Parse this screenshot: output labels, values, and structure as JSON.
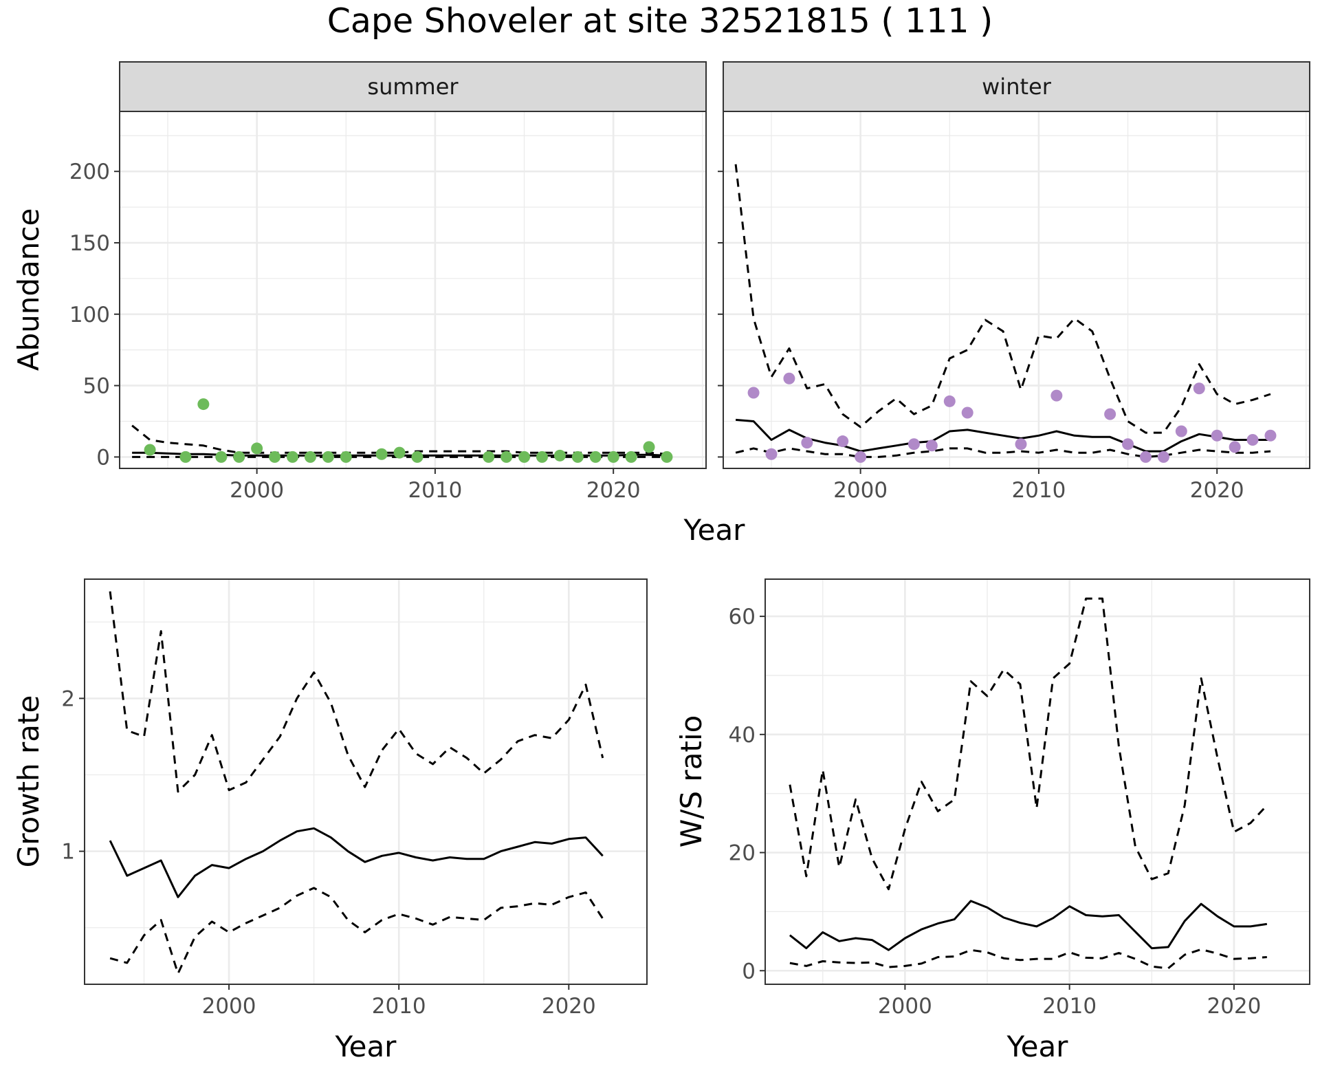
{
  "figure": {
    "title": "Cape Shoveler at site 32521815 ( 111 )"
  },
  "colors": {
    "summer_points": "#6dbb5a",
    "winter_points": "#b089c8",
    "lines": "#000000",
    "strip_fill": "#d9d9d9",
    "grid": "#ebebeb",
    "axis_text": "#4d4d4d"
  },
  "chart_data": [
    {
      "type": "scatter",
      "panel": "summer",
      "strip_label": "summer",
      "ylabel": "Abundance",
      "xlabel": "Year",
      "xlim": [
        1992.3,
        2025.2
      ],
      "ylim": [
        -8,
        242
      ],
      "xticks": [
        2000,
        2010,
        2020
      ],
      "yticks": [
        0,
        50,
        100,
        150,
        200
      ],
      "grid": true,
      "points": {
        "x": [
          1994,
          1996,
          1997,
          1998,
          1999,
          2000,
          2001,
          2002,
          2003,
          2004,
          2005,
          2007,
          2008,
          2009,
          2013,
          2014,
          2015,
          2016,
          2017,
          2018,
          2019,
          2020,
          2021,
          2022,
          2023
        ],
        "y": [
          5,
          0,
          37,
          0,
          0,
          6,
          0,
          0,
          0,
          0,
          0,
          2,
          3,
          0,
          0,
          0,
          0,
          0,
          1,
          0,
          0,
          0,
          0,
          7,
          0
        ]
      },
      "series": [
        {
          "style": "solid",
          "x": [
            1993,
            1994,
            1995,
            1996,
            1997,
            1998,
            1999,
            2000,
            2001,
            2002,
            2003,
            2004,
            2005,
            2006,
            2007,
            2008,
            2009,
            2010,
            2011,
            2012,
            2013,
            2014,
            2015,
            2016,
            2017,
            2018,
            2019,
            2020,
            2021,
            2022,
            2023
          ],
          "y": [
            3,
            3,
            2.5,
            2,
            2,
            1.5,
            1,
            1,
            1,
            1,
            1,
            1,
            1,
            1,
            1,
            1,
            1,
            1,
            1,
            1,
            1,
            1,
            1,
            1,
            1,
            1,
            1,
            1,
            1.5,
            1.5,
            1
          ]
        },
        {
          "style": "dashed",
          "x": [
            1993,
            1994,
            1995,
            1996,
            1997,
            1998,
            1999,
            2000,
            2001,
            2002,
            2003,
            2004,
            2005,
            2006,
            2007,
            2008,
            2009,
            2010,
            2011,
            2012,
            2013,
            2014,
            2015,
            2016,
            2017,
            2018,
            2019,
            2020,
            2021,
            2022,
            2023
          ],
          "y": [
            22,
            12,
            10,
            9,
            8,
            5,
            3,
            3,
            3,
            3,
            3,
            3,
            3,
            3,
            3,
            3,
            4,
            4,
            4,
            4,
            4,
            4,
            3,
            3,
            3,
            3,
            3,
            3,
            3,
            3,
            2
          ]
        },
        {
          "style": "dashed",
          "x": [
            1993,
            1994,
            1995,
            1996,
            1997,
            1998,
            1999,
            2000,
            2001,
            2002,
            2003,
            2004,
            2005,
            2006,
            2007,
            2008,
            2009,
            2010,
            2011,
            2012,
            2013,
            2014,
            2015,
            2016,
            2017,
            2018,
            2019,
            2020,
            2021,
            2022,
            2023
          ],
          "y": [
            0,
            0,
            0,
            0,
            0,
            0,
            0,
            0,
            0,
            0,
            0,
            0,
            0,
            0,
            0,
            0,
            0,
            0,
            0,
            0,
            0,
            0,
            0,
            0,
            0,
            0,
            0,
            0,
            0,
            0,
            0
          ]
        }
      ]
    },
    {
      "type": "scatter",
      "panel": "winter",
      "strip_label": "winter",
      "ylabel": "",
      "xlabel": "Year",
      "xlim": [
        1992.3,
        2025.2
      ],
      "ylim": [
        -8,
        242
      ],
      "xticks": [
        2000,
        2010,
        2020
      ],
      "yticks": [
        0,
        50,
        100,
        150,
        200
      ],
      "grid": true,
      "points": {
        "x": [
          1994,
          1995,
          1996,
          1997,
          1999,
          2000,
          2003,
          2004,
          2005,
          2006,
          2009,
          2011,
          2014,
          2015,
          2016,
          2017,
          2018,
          2019,
          2020,
          2021,
          2022,
          2023
        ],
        "y": [
          45,
          2,
          55,
          10,
          11,
          0,
          9,
          8,
          39,
          31,
          9,
          43,
          30,
          9,
          0,
          0,
          18,
          48,
          15,
          7,
          12,
          15
        ]
      },
      "series": [
        {
          "style": "solid",
          "x": [
            1993,
            1994,
            1995,
            1996,
            1997,
            1998,
            1999,
            2000,
            2001,
            2002,
            2003,
            2004,
            2005,
            2006,
            2007,
            2008,
            2009,
            2010,
            2011,
            2012,
            2013,
            2014,
            2015,
            2016,
            2017,
            2018,
            2019,
            2020,
            2021,
            2022,
            2023
          ],
          "y": [
            26,
            25,
            12,
            19,
            13,
            10,
            8,
            4,
            6,
            8,
            10,
            11,
            18,
            19,
            17,
            15,
            13,
            15,
            18,
            15,
            14,
            14,
            9,
            4,
            4,
            11,
            16,
            14,
            12,
            12,
            12
          ]
        },
        {
          "style": "dashed",
          "x": [
            1993,
            1994,
            1995,
            1996,
            1997,
            1998,
            1999,
            2000,
            2001,
            2002,
            2003,
            2004,
            2005,
            2006,
            2007,
            2008,
            2009,
            2010,
            2011,
            2012,
            2013,
            2014,
            2015,
            2016,
            2017,
            2018,
            2019,
            2020,
            2021,
            2022,
            2023
          ],
          "y": [
            205,
            97,
            56,
            76,
            48,
            51,
            30,
            21,
            32,
            41,
            30,
            36,
            69,
            75,
            96,
            88,
            47,
            85,
            83,
            97,
            88,
            55,
            25,
            17,
            17,
            35,
            65,
            44,
            37,
            40,
            44
          ]
        },
        {
          "style": "dashed",
          "x": [
            1993,
            1994,
            1995,
            1996,
            1997,
            1998,
            1999,
            2000,
            2001,
            2002,
            2003,
            2004,
            2005,
            2006,
            2007,
            2008,
            2009,
            2010,
            2011,
            2012,
            2013,
            2014,
            2015,
            2016,
            2017,
            2018,
            2019,
            2020,
            2021,
            2022,
            2023
          ],
          "y": [
            3,
            6,
            3,
            6,
            4,
            2,
            2,
            0,
            0,
            1,
            3,
            4,
            6,
            6,
            3,
            3,
            4,
            3,
            5,
            3,
            3,
            5,
            2,
            0,
            1,
            3,
            5,
            4,
            3,
            3,
            4
          ]
        }
      ]
    },
    {
      "type": "line",
      "panel": "growth",
      "ylabel": "Growth rate",
      "xlabel": "Year",
      "xlim": [
        1991.5,
        2024.6
      ],
      "ylim": [
        0.13,
        2.78
      ],
      "xticks": [
        2000,
        2010,
        2020
      ],
      "yticks": [
        1,
        2
      ],
      "grid": true,
      "series": [
        {
          "style": "solid",
          "x": [
            1993,
            1994,
            1995,
            1996,
            1997,
            1998,
            1999,
            2000,
            2001,
            2002,
            2003,
            2004,
            2005,
            2006,
            2007,
            2008,
            2009,
            2010,
            2011,
            2012,
            2013,
            2014,
            2015,
            2016,
            2017,
            2018,
            2019,
            2020,
            2021,
            2022
          ],
          "y": [
            1.07,
            0.84,
            0.89,
            0.94,
            0.7,
            0.84,
            0.91,
            0.89,
            0.95,
            1.0,
            1.07,
            1.13,
            1.15,
            1.09,
            1.0,
            0.93,
            0.97,
            0.99,
            0.96,
            0.94,
            0.96,
            0.95,
            0.95,
            1.0,
            1.03,
            1.06,
            1.05,
            1.08,
            1.09,
            0.97
          ]
        },
        {
          "style": "dashed",
          "x": [
            1993,
            1994,
            1995,
            1996,
            1997,
            1998,
            1999,
            2000,
            2001,
            2002,
            2003,
            2004,
            2005,
            2006,
            2007,
            2008,
            2009,
            2010,
            2011,
            2012,
            2013,
            2014,
            2015,
            2016,
            2017,
            2018,
            2019,
            2020,
            2021,
            2022
          ],
          "y": [
            2.7,
            1.79,
            1.75,
            2.44,
            1.39,
            1.5,
            1.76,
            1.4,
            1.45,
            1.6,
            1.75,
            2.0,
            2.17,
            1.97,
            1.63,
            1.42,
            1.66,
            1.8,
            1.64,
            1.57,
            1.68,
            1.61,
            1.51,
            1.6,
            1.72,
            1.76,
            1.74,
            1.86,
            2.09,
            1.61
          ]
        },
        {
          "style": "dashed",
          "x": [
            1993,
            1994,
            1995,
            1996,
            1997,
            1998,
            1999,
            2000,
            2001,
            2002,
            2003,
            2004,
            2005,
            2006,
            2007,
            2008,
            2009,
            2010,
            2011,
            2012,
            2013,
            2014,
            2015,
            2016,
            2017,
            2018,
            2019,
            2020,
            2021,
            2022
          ],
          "y": [
            0.3,
            0.27,
            0.45,
            0.55,
            0.2,
            0.44,
            0.54,
            0.47,
            0.53,
            0.58,
            0.63,
            0.71,
            0.76,
            0.7,
            0.55,
            0.47,
            0.55,
            0.59,
            0.56,
            0.52,
            0.57,
            0.56,
            0.55,
            0.63,
            0.64,
            0.66,
            0.65,
            0.7,
            0.73,
            0.56
          ]
        }
      ]
    },
    {
      "type": "line",
      "panel": "ws_ratio",
      "ylabel": "W/S ratio",
      "xlabel": "Year",
      "xlim": [
        1991.5,
        2024.6
      ],
      "ylim": [
        -2.3,
        66.3
      ],
      "xticks": [
        2000,
        2010,
        2020
      ],
      "yticks": [
        0,
        20,
        40,
        60
      ],
      "grid": true,
      "series": [
        {
          "style": "solid",
          "x": [
            1993,
            1994,
            1995,
            1996,
            1997,
            1998,
            1999,
            2000,
            2001,
            2002,
            2003,
            2004,
            2005,
            2006,
            2007,
            2008,
            2009,
            2010,
            2011,
            2012,
            2013,
            2014,
            2015,
            2016,
            2017,
            2018,
            2019,
            2020,
            2021,
            2022
          ],
          "y": [
            6.0,
            3.8,
            6.5,
            5.0,
            5.5,
            5.2,
            3.5,
            5.5,
            7.0,
            8.0,
            8.7,
            11.8,
            10.7,
            9.0,
            8.1,
            7.5,
            8.9,
            10.9,
            9.4,
            9.2,
            9.4,
            6.6,
            3.8,
            4.0,
            8.4,
            11.3,
            9.2,
            7.5,
            7.5,
            7.9
          ]
        },
        {
          "style": "dashed",
          "x": [
            1993,
            1994,
            1995,
            1996,
            1997,
            1998,
            1999,
            2000,
            2001,
            2002,
            2003,
            2004,
            2005,
            2006,
            2007,
            2008,
            2009,
            2010,
            2011,
            2012,
            2013,
            2014,
            2015,
            2016,
            2017,
            2018,
            2019,
            2020,
            2021,
            2022
          ],
          "y": [
            31.5,
            16.0,
            34.0,
            17.5,
            29.0,
            19.0,
            13.8,
            24.0,
            32.0,
            27.0,
            29.0,
            49.0,
            46.5,
            51.0,
            48.5,
            27.5,
            49.5,
            52.0,
            63.0,
            63.0,
            38.0,
            21.0,
            15.5,
            16.5,
            28.0,
            49.5,
            36.0,
            23.5,
            25.0,
            28.0
          ]
        },
        {
          "style": "dashed",
          "x": [
            1993,
            1994,
            1995,
            1996,
            1997,
            1998,
            1999,
            2000,
            2001,
            2002,
            2003,
            2004,
            2005,
            2006,
            2007,
            2008,
            2009,
            2010,
            2011,
            2012,
            2013,
            2014,
            2015,
            2016,
            2017,
            2018,
            2019,
            2020,
            2021,
            2022
          ],
          "y": [
            1.3,
            0.8,
            1.6,
            1.4,
            1.3,
            1.4,
            0.6,
            0.8,
            1.2,
            2.3,
            2.4,
            3.5,
            3.1,
            2.1,
            1.8,
            2.0,
            2.0,
            3.1,
            2.2,
            2.1,
            3.0,
            2.0,
            0.7,
            0.4,
            2.7,
            3.6,
            2.9,
            2.0,
            2.1,
            2.3
          ]
        }
      ]
    }
  ]
}
